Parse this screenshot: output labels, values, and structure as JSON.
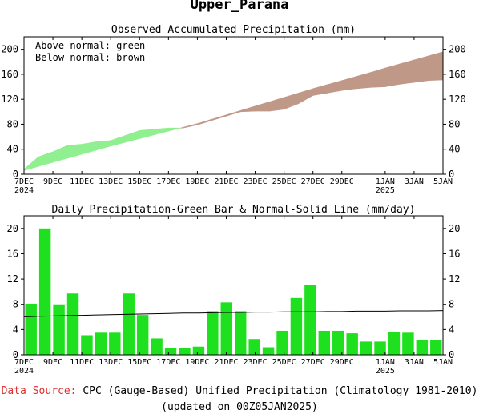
{
  "page": {
    "title": "Upper_Parana"
  },
  "chart_data": [
    {
      "type": "area",
      "title": "Observed Accumulated Precipitation (mm)",
      "legend": [
        "Above normal: green",
        "Below normal: brown"
      ],
      "legend_position": "top-left",
      "x_tick_labels": [
        [
          "7DEC",
          "2024"
        ],
        [
          "9DEC"
        ],
        [
          "11DEC"
        ],
        [
          "13DEC"
        ],
        [
          "15DEC"
        ],
        [
          "17DEC"
        ],
        [
          "19DEC"
        ],
        [
          "21DEC"
        ],
        [
          "23DEC"
        ],
        [
          "25DEC"
        ],
        [
          "27DEC"
        ],
        [
          "29DEC"
        ],
        [
          "1JAN",
          "2025"
        ],
        [
          "3JAN"
        ],
        [
          "5JAN"
        ]
      ],
      "x_tick_days": [
        0,
        2,
        4,
        6,
        8,
        10,
        12,
        14,
        16,
        18,
        20,
        22,
        25,
        27,
        29
      ],
      "xlim_days": [
        0,
        29
      ],
      "ylim": [
        0,
        220
      ],
      "y_ticks": [
        0,
        40,
        80,
        120,
        160,
        200
      ],
      "colors": {
        "above": "#90f090",
        "below": "#c09888"
      },
      "observed": [
        8,
        28,
        36,
        46,
        48,
        52,
        54,
        62,
        70,
        72,
        74,
        74,
        79,
        86,
        93,
        100,
        101,
        101,
        104,
        113,
        126,
        130,
        134,
        137,
        139,
        140,
        144,
        147,
        150,
        151
      ],
      "normal": [
        6,
        12.5,
        19,
        25.5,
        32,
        38.5,
        45,
        51,
        57,
        63,
        69,
        75,
        81,
        88,
        95,
        102,
        109,
        116,
        123,
        130,
        137,
        143.5,
        150,
        156.5,
        163,
        170,
        176.5,
        183,
        189.5,
        196
      ]
    },
    {
      "type": "bar",
      "title": "Daily Precipitation-Green Bar & Normal-Solid Line (mm/day)",
      "x_tick_labels": [
        [
          "7DEC",
          "2024"
        ],
        [
          "9DEC"
        ],
        [
          "11DEC"
        ],
        [
          "13DEC"
        ],
        [
          "15DEC"
        ],
        [
          "17DEC"
        ],
        [
          "19DEC"
        ],
        [
          "21DEC"
        ],
        [
          "23DEC"
        ],
        [
          "25DEC"
        ],
        [
          "27DEC"
        ],
        [
          "29DEC"
        ],
        [
          "1JAN",
          "2025"
        ],
        [
          "3JAN"
        ],
        [
          "5JAN"
        ]
      ],
      "x_tick_days": [
        0,
        2,
        4,
        6,
        8,
        10,
        12,
        14,
        16,
        18,
        20,
        22,
        25,
        27,
        29
      ],
      "xlim_days": [
        0,
        29
      ],
      "ylim": [
        0,
        22
      ],
      "y_ticks": [
        0,
        4,
        8,
        12,
        16,
        20
      ],
      "colors": {
        "bar": "#1ee01e",
        "normal_line": "#000000"
      },
      "values": [
        8.1,
        20,
        8,
        9.7,
        3.1,
        3.5,
        3.5,
        9.7,
        6.3,
        2.6,
        1.1,
        1.1,
        1.3,
        6.9,
        8.3,
        6.9,
        2.5,
        1.2,
        3.8,
        9.0,
        11.1,
        3.8,
        3.8,
        3.4,
        2.1,
        2.1,
        3.6,
        3.5,
        2.4,
        2.4
      ],
      "normal": [
        6.0,
        6.1,
        6.15,
        6.2,
        6.25,
        6.3,
        6.35,
        6.4,
        6.45,
        6.5,
        6.55,
        6.6,
        6.6,
        6.65,
        6.7,
        6.7,
        6.75,
        6.75,
        6.8,
        6.8,
        6.8,
        6.85,
        6.85,
        6.9,
        6.9,
        6.9,
        6.95,
        6.95,
        6.95,
        7.0
      ]
    }
  ],
  "footer": {
    "source_label": "Data Source:",
    "source_text": " CPC (Gauge-Based) Unified Precipitation (Climatology 1981-2010)",
    "updated": "(updated on 00Z05JAN2025)"
  }
}
